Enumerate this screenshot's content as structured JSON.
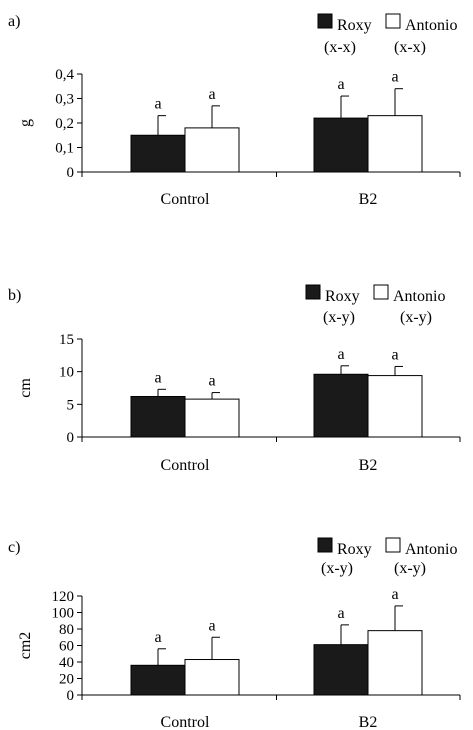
{
  "chart_data": [
    {
      "panel_label": "a)",
      "type": "bar",
      "ylabel": "g",
      "ylim": [
        0,
        0.4
      ],
      "yticks": [
        0,
        0.1,
        0.2,
        0.3,
        0.4
      ],
      "ytick_labels": [
        "0",
        "0,1",
        "0,2",
        "0,3",
        "0,4"
      ],
      "categories": [
        "Control",
        "B2"
      ],
      "legend": {
        "placement": "top-right",
        "entries": [
          "Roxy",
          "Antonio"
        ],
        "group_letters": [
          "(x-x)",
          "(x-x)"
        ]
      },
      "series": [
        {
          "name": "Roxy",
          "color": "#1a1a1a",
          "values": [
            0.15,
            0.22
          ],
          "errors": [
            0.08,
            0.09
          ],
          "letters": [
            "a",
            "a"
          ]
        },
        {
          "name": "Antonio",
          "color": "#ffffff",
          "values": [
            0.18,
            0.23
          ],
          "errors": [
            0.09,
            0.11
          ],
          "letters": [
            "a",
            "a"
          ]
        }
      ]
    },
    {
      "panel_label": "b)",
      "type": "bar",
      "ylabel": "cm",
      "ylim": [
        0,
        15
      ],
      "yticks": [
        0,
        5,
        10,
        15
      ],
      "ytick_labels": [
        "0",
        "5",
        "10",
        "15"
      ],
      "categories": [
        "Control",
        "B2"
      ],
      "legend": {
        "placement": "top-right",
        "entries": [
          "Roxy",
          "Antonio"
        ],
        "group_letters": [
          "(x-y)",
          "(x-y)"
        ]
      },
      "series": [
        {
          "name": "Roxy",
          "color": "#1a1a1a",
          "values": [
            6.2,
            9.6
          ],
          "errors": [
            1.1,
            1.3
          ],
          "letters": [
            "a",
            "a"
          ]
        },
        {
          "name": "Antonio",
          "color": "#ffffff",
          "values": [
            5.8,
            9.4
          ],
          "errors": [
            1.0,
            1.4
          ],
          "letters": [
            "a",
            "a"
          ]
        }
      ]
    },
    {
      "panel_label": "c)",
      "type": "bar",
      "ylabel": "cm2",
      "ylim": [
        0,
        120
      ],
      "yticks": [
        0,
        20,
        40,
        60,
        80,
        100,
        120
      ],
      "ytick_labels": [
        "0",
        "20",
        "40",
        "60",
        "80",
        "100",
        "120"
      ],
      "categories": [
        "Control",
        "B2"
      ],
      "legend": {
        "placement": "top-right",
        "entries": [
          "Roxy",
          "Antonio"
        ],
        "group_letters": [
          "(x-y)",
          "(x-y)"
        ]
      },
      "series": [
        {
          "name": "Roxy",
          "color": "#1a1a1a",
          "values": [
            36,
            61
          ],
          "errors": [
            20,
            24
          ],
          "letters": [
            "a",
            "a"
          ]
        },
        {
          "name": "Antonio",
          "color": "#ffffff",
          "values": [
            43,
            78
          ],
          "errors": [
            27,
            30
          ],
          "letters": [
            "a",
            "a"
          ]
        }
      ]
    }
  ]
}
